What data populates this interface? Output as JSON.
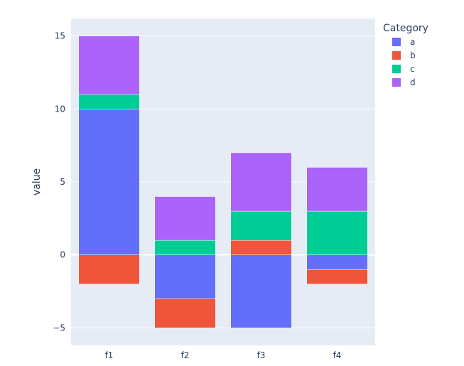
{
  "chart_data": {
    "type": "bar",
    "barmode": "relative",
    "categories": [
      "f1",
      "f2",
      "f3",
      "f4"
    ],
    "series": [
      {
        "name": "a",
        "color": "#636efa",
        "values": [
          10,
          -3,
          -5,
          -1
        ]
      },
      {
        "name": "b",
        "color": "#EF553B",
        "values": [
          -2,
          -2,
          1,
          -1
        ]
      },
      {
        "name": "c",
        "color": "#00cc96",
        "values": [
          1,
          1,
          2,
          3
        ]
      },
      {
        "name": "d",
        "color": "#ab63fa",
        "values": [
          4,
          3,
          4,
          3
        ]
      }
    ],
    "xlabel": "",
    "ylabel": "value",
    "ylim": [
      -6.2,
      16.2
    ],
    "yticks": [
      -5,
      0,
      5,
      10,
      15
    ],
    "ytick_labels": [
      "−5",
      "0",
      "5",
      "10",
      "15"
    ],
    "grid": true,
    "legend": {
      "title": "Category",
      "placement": "top-right"
    },
    "colors": {
      "plot_background": "#e5ecf6",
      "grid": "#ffffff",
      "text": "#2a3f5f",
      "bar_outline": "#ffffff"
    }
  }
}
